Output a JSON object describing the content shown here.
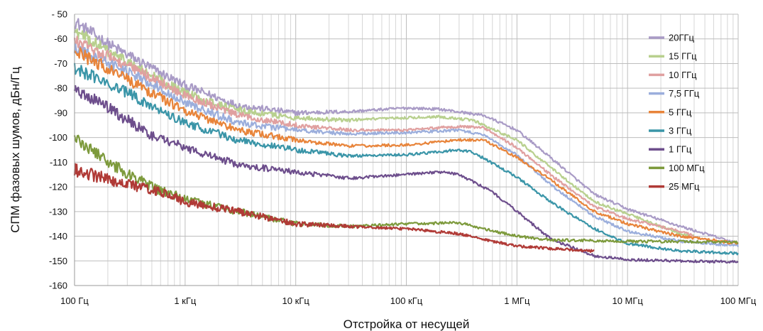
{
  "chart_data": {
    "type": "line",
    "title": "",
    "xlabel": "Отстройка от несущей",
    "ylabel": "СПМ фазовых шумов, дБн/Гц",
    "x_scale": "log",
    "xlim": [
      100,
      100000000
    ],
    "ylim": [
      -160,
      -50
    ],
    "grid": true,
    "legend_position": "right",
    "x_ticks": [
      {
        "value": 100,
        "label": "100 Гц"
      },
      {
        "value": 1000,
        "label": "1 кГц"
      },
      {
        "value": 10000,
        "label": "10 кГц"
      },
      {
        "value": 100000,
        "label": "100 кГц"
      },
      {
        "value": 1000000,
        "label": "1 МГц"
      },
      {
        "value": 10000000,
        "label": "10 МГц"
      },
      {
        "value": 100000000,
        "label": "100 МГц"
      }
    ],
    "y_ticks": [
      {
        "value": -50,
        "label": "- 50"
      },
      {
        "value": -60,
        "label": "-60"
      },
      {
        "value": -70,
        "label": "-70"
      },
      {
        "value": -80,
        "label": "-80"
      },
      {
        "value": -90,
        "label": "-90"
      },
      {
        "value": -100,
        "label": "-100"
      },
      {
        "value": -110,
        "label": "-110"
      },
      {
        "value": -120,
        "label": "-120"
      },
      {
        "value": -130,
        "label": "-130"
      },
      {
        "value": -140,
        "label": "-140"
      },
      {
        "value": -150,
        "label": "-150"
      },
      {
        "value": -160,
        "label": "-160"
      }
    ],
    "series": [
      {
        "name": "20ГГц",
        "color": "#a99bc6",
        "points": [
          [
            100,
            -53
          ],
          [
            200,
            -62
          ],
          [
            500,
            -72
          ],
          [
            1000,
            -79
          ],
          [
            3000,
            -87
          ],
          [
            10000,
            -90
          ],
          [
            30000,
            -89.5
          ],
          [
            100000,
            -88
          ],
          [
            200000,
            -88.5
          ],
          [
            500000,
            -91
          ],
          [
            1000000,
            -97
          ],
          [
            2000000,
            -108
          ],
          [
            5000000,
            -123
          ],
          [
            10000000,
            -129
          ],
          [
            30000000,
            -136
          ],
          [
            100000000,
            -143
          ]
        ]
      },
      {
        "name": "15 ГГц",
        "color": "#b8d08e",
        "points": [
          [
            100,
            -57
          ],
          [
            200,
            -65
          ],
          [
            500,
            -75
          ],
          [
            1000,
            -82
          ],
          [
            3000,
            -89
          ],
          [
            10000,
            -92
          ],
          [
            30000,
            -93
          ],
          [
            100000,
            -92
          ],
          [
            200000,
            -91.5
          ],
          [
            400000,
            -93
          ],
          [
            1000000,
            -101
          ],
          [
            2000000,
            -112
          ],
          [
            5000000,
            -126
          ],
          [
            10000000,
            -131
          ],
          [
            30000000,
            -139
          ],
          [
            40000000,
            -140
          ]
        ]
      },
      {
        "name": "10 ГГц",
        "color": "#e0a0a0",
        "points": [
          [
            100,
            -61
          ],
          [
            200,
            -67
          ],
          [
            500,
            -76
          ],
          [
            1000,
            -83
          ],
          [
            3000,
            -91
          ],
          [
            10000,
            -95
          ],
          [
            30000,
            -97
          ],
          [
            100000,
            -97
          ],
          [
            300000,
            -95.5
          ],
          [
            500000,
            -96
          ],
          [
            1000000,
            -104
          ],
          [
            2000000,
            -115
          ],
          [
            5000000,
            -128
          ],
          [
            10000000,
            -133
          ],
          [
            30000000,
            -138
          ],
          [
            40000000,
            -140
          ]
        ]
      },
      {
        "name": "7,5 ГГц",
        "color": "#9baedc",
        "points": [
          [
            100,
            -64
          ],
          [
            200,
            -70
          ],
          [
            500,
            -78
          ],
          [
            1000,
            -86
          ],
          [
            3000,
            -94
          ],
          [
            10000,
            -97
          ],
          [
            30000,
            -98.5
          ],
          [
            100000,
            -98
          ],
          [
            300000,
            -97
          ],
          [
            500000,
            -99
          ],
          [
            1000000,
            -107
          ],
          [
            2000000,
            -119
          ],
          [
            5000000,
            -132
          ],
          [
            10000000,
            -138
          ],
          [
            30000000,
            -142
          ],
          [
            100000000,
            -144
          ]
        ]
      },
      {
        "name": "5 ГГц",
        "color": "#e8843a",
        "points": [
          [
            100,
            -65
          ],
          [
            200,
            -72
          ],
          [
            500,
            -82
          ],
          [
            1000,
            -89
          ],
          [
            3000,
            -97
          ],
          [
            10000,
            -101
          ],
          [
            30000,
            -103.5
          ],
          [
            100000,
            -103
          ],
          [
            300000,
            -101
          ],
          [
            500000,
            -101
          ],
          [
            1000000,
            -108
          ],
          [
            2000000,
            -117
          ],
          [
            5000000,
            -130
          ],
          [
            10000000,
            -135
          ],
          [
            30000000,
            -140
          ],
          [
            100000000,
            -143
          ]
        ]
      },
      {
        "name": "3 ГГц",
        "color": "#3a95a8",
        "points": [
          [
            100,
            -72
          ],
          [
            200,
            -78
          ],
          [
            500,
            -87
          ],
          [
            1000,
            -94
          ],
          [
            3000,
            -101
          ],
          [
            10000,
            -105
          ],
          [
            30000,
            -107.5
          ],
          [
            100000,
            -107
          ],
          [
            300000,
            -105
          ],
          [
            400000,
            -106
          ],
          [
            1000000,
            -116
          ],
          [
            2000000,
            -126
          ],
          [
            5000000,
            -137
          ],
          [
            10000000,
            -143
          ],
          [
            30000000,
            -146
          ],
          [
            100000000,
            -147
          ]
        ]
      },
      {
        "name": "1 ГГц",
        "color": "#6d4e8c",
        "points": [
          [
            100,
            -80
          ],
          [
            200,
            -88
          ],
          [
            500,
            -99
          ],
          [
            1000,
            -104
          ],
          [
            3000,
            -111
          ],
          [
            10000,
            -114
          ],
          [
            30000,
            -116.5
          ],
          [
            100000,
            -115
          ],
          [
            200000,
            -114
          ],
          [
            300000,
            -115
          ],
          [
            600000,
            -122
          ],
          [
            1000000,
            -130
          ],
          [
            2000000,
            -141
          ],
          [
            5000000,
            -148
          ],
          [
            10000000,
            -149.5
          ],
          [
            100000000,
            -150.5
          ]
        ]
      },
      {
        "name": "100 МГц",
        "color": "#7d9a3c",
        "points": [
          [
            100,
            -100
          ],
          [
            200,
            -110
          ],
          [
            500,
            -120
          ],
          [
            1000,
            -125
          ],
          [
            3000,
            -130
          ],
          [
            10000,
            -135
          ],
          [
            30000,
            -136
          ],
          [
            100000,
            -135
          ],
          [
            300000,
            -134.5
          ],
          [
            500000,
            -137
          ],
          [
            1000000,
            -140
          ],
          [
            2000000,
            -141.5
          ],
          [
            10000000,
            -142
          ],
          [
            100000000,
            -142.5
          ]
        ]
      },
      {
        "name": "25 МГц",
        "color": "#b03a36",
        "points": [
          [
            100,
            -113
          ],
          [
            200,
            -117
          ],
          [
            500,
            -121
          ],
          [
            1000,
            -126
          ],
          [
            3000,
            -130
          ],
          [
            10000,
            -135
          ],
          [
            30000,
            -136
          ],
          [
            100000,
            -137
          ],
          [
            300000,
            -139
          ],
          [
            600000,
            -142
          ],
          [
            1000000,
            -144
          ],
          [
            2000000,
            -145
          ],
          [
            5000000,
            -146
          ]
        ]
      }
    ]
  }
}
